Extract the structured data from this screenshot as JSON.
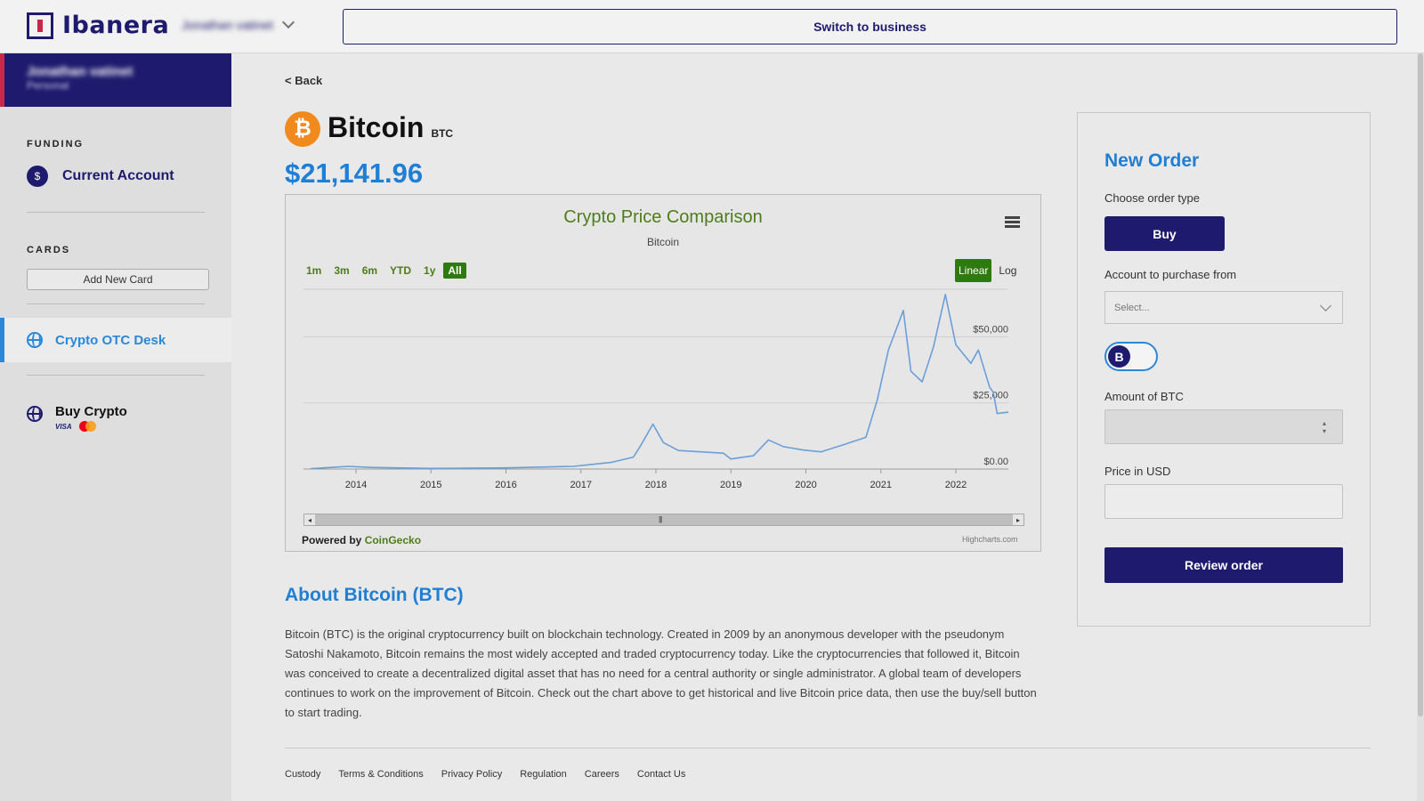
{
  "header": {
    "logo_text": "Ibanera",
    "user_name": "Jonathan vatinet",
    "switch_label": "Switch to business"
  },
  "sidebar": {
    "profile_name": "Jonathan vatinet",
    "profile_type": "Personal",
    "funding_label": "FUNDING",
    "current_account": "Current Account",
    "cards_label": "CARDS",
    "add_card": "Add New Card",
    "otc_desk": "Crypto OTC Desk",
    "buy_crypto": "Buy Crypto",
    "visa": "VISA"
  },
  "main": {
    "back": "< Back",
    "coin_name": "Bitcoin",
    "coin_symbol": "BTC",
    "price": "$21,141.96",
    "about_title": "About Bitcoin (BTC)",
    "about_text": "Bitcoin (BTC) is the original cryptocurrency built on blockchain technology. Created in 2009 by an anonymous developer with the pseudonym Satoshi Nakamoto, Bitcoin remains the most widely accepted and traded cryptocurrency today. Like the cryptocurrencies that followed it, Bitcoin was conceived to create a decentralized digital asset that has no need for a central authority or single administrator. A global team of developers continues to work on the improvement of Bitcoin. Check out the chart above to get historical and live Bitcoin price data, then use the buy/sell button to start trading."
  },
  "chart": {
    "range_buttons": [
      "1m",
      "3m",
      "6m",
      "YTD",
      "1y",
      "All"
    ],
    "active_range": "All",
    "scale_linear": "Linear",
    "scale_log": "Log",
    "powered_by": "Powered by ",
    "powered_source": "CoinGecko",
    "credit": "Highcharts.com"
  },
  "chart_data": {
    "type": "line",
    "title": "Crypto Price Comparison",
    "subtitle": "Bitcoin",
    "x_ticks": [
      "2014",
      "2015",
      "2016",
      "2017",
      "2018",
      "2019",
      "2020",
      "2021",
      "2022"
    ],
    "y_ticks": [
      "$0.00",
      "$25,000",
      "$50,000"
    ],
    "ylim": [
      0,
      68000
    ],
    "series": [
      {
        "color": "#6a9fd8",
        "x": [
          2013.4,
          2013.9,
          2014.2,
          2015.0,
          2016.0,
          2016.9,
          2017.4,
          2017.7,
          2017.8,
          2017.96,
          2018.1,
          2018.3,
          2018.6,
          2018.9,
          2019.0,
          2019.3,
          2019.5,
          2019.7,
          2019.96,
          2020.2,
          2020.5,
          2020.8,
          2020.95,
          2021.1,
          2021.3,
          2021.4,
          2021.55,
          2021.7,
          2021.86,
          2022.0,
          2022.2,
          2022.3,
          2022.45,
          2022.5,
          2022.55,
          2022.7
        ],
        "values": [
          130,
          1000,
          600,
          250,
          430,
          1000,
          2500,
          4500,
          9000,
          17000,
          10000,
          7000,
          6500,
          6000,
          3800,
          5000,
          11000,
          8500,
          7200,
          6500,
          9200,
          12000,
          26000,
          45000,
          60000,
          37000,
          33000,
          46000,
          66000,
          47000,
          40000,
          45000,
          31000,
          29000,
          21000,
          21500
        ]
      }
    ]
  },
  "order": {
    "title": "New Order",
    "order_type_label": "Choose order type",
    "buy": "Buy",
    "account_label": "Account to purchase from",
    "account_placeholder": "Select...",
    "toggle_symbol": "B",
    "amount_label": "Amount of BTC",
    "price_label": "Price in USD",
    "review": "Review order"
  },
  "footer": {
    "links": [
      "Custody",
      "Terms & Conditions",
      "Privacy Policy",
      "Regulation",
      "Careers",
      "Contact Us"
    ]
  }
}
